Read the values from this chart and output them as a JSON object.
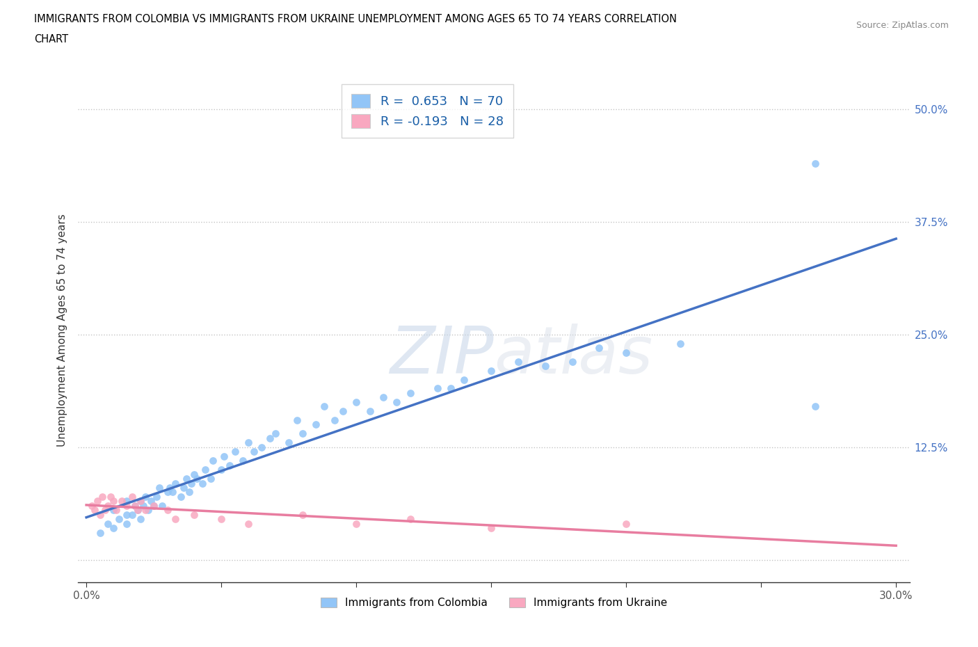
{
  "title_line1": "IMMIGRANTS FROM COLOMBIA VS IMMIGRANTS FROM UKRAINE UNEMPLOYMENT AMONG AGES 65 TO 74 YEARS CORRELATION",
  "title_line2": "CHART",
  "source": "Source: ZipAtlas.com",
  "ylabel": "Unemployment Among Ages 65 to 74 years",
  "colombia_R": 0.653,
  "colombia_N": 70,
  "ukraine_R": -0.193,
  "ukraine_N": 28,
  "colombia_color": "#92C5F7",
  "ukraine_color": "#F9A8C0",
  "colombia_line_color": "#4472C4",
  "ukraine_line_color": "#E87DA0",
  "legend_label_1": "Immigrants from Colombia",
  "legend_label_2": "Immigrants from Ukraine",
  "colombia_x": [
    0.005,
    0.008,
    0.01,
    0.01,
    0.012,
    0.015,
    0.015,
    0.015,
    0.017,
    0.018,
    0.019,
    0.02,
    0.02,
    0.021,
    0.022,
    0.023,
    0.024,
    0.025,
    0.026,
    0.027,
    0.028,
    0.03,
    0.031,
    0.032,
    0.033,
    0.035,
    0.036,
    0.037,
    0.038,
    0.039,
    0.04,
    0.041,
    0.043,
    0.044,
    0.046,
    0.047,
    0.05,
    0.051,
    0.053,
    0.055,
    0.058,
    0.06,
    0.062,
    0.065,
    0.068,
    0.07,
    0.075,
    0.078,
    0.08,
    0.085,
    0.088,
    0.092,
    0.095,
    0.1,
    0.105,
    0.11,
    0.115,
    0.12,
    0.13,
    0.135,
    0.14,
    0.15,
    0.16,
    0.17,
    0.18,
    0.19,
    0.2,
    0.22,
    0.27,
    0.27
  ],
  "colombia_y": [
    0.03,
    0.04,
    0.035,
    0.055,
    0.045,
    0.04,
    0.05,
    0.065,
    0.05,
    0.06,
    0.055,
    0.045,
    0.065,
    0.06,
    0.07,
    0.055,
    0.065,
    0.06,
    0.07,
    0.08,
    0.06,
    0.075,
    0.08,
    0.075,
    0.085,
    0.07,
    0.08,
    0.09,
    0.075,
    0.085,
    0.095,
    0.09,
    0.085,
    0.1,
    0.09,
    0.11,
    0.1,
    0.115,
    0.105,
    0.12,
    0.11,
    0.13,
    0.12,
    0.125,
    0.135,
    0.14,
    0.13,
    0.155,
    0.14,
    0.15,
    0.17,
    0.155,
    0.165,
    0.175,
    0.165,
    0.18,
    0.175,
    0.185,
    0.19,
    0.19,
    0.2,
    0.21,
    0.22,
    0.215,
    0.22,
    0.235,
    0.23,
    0.24,
    0.17,
    0.44
  ],
  "ukraine_x": [
    0.002,
    0.003,
    0.004,
    0.005,
    0.006,
    0.007,
    0.008,
    0.009,
    0.01,
    0.011,
    0.013,
    0.015,
    0.017,
    0.018,
    0.019,
    0.02,
    0.022,
    0.025,
    0.03,
    0.033,
    0.04,
    0.05,
    0.06,
    0.08,
    0.1,
    0.12,
    0.15,
    0.2
  ],
  "ukraine_y": [
    0.06,
    0.055,
    0.065,
    0.05,
    0.07,
    0.055,
    0.06,
    0.07,
    0.065,
    0.055,
    0.065,
    0.06,
    0.07,
    0.06,
    0.055,
    0.065,
    0.055,
    0.06,
    0.055,
    0.045,
    0.05,
    0.045,
    0.04,
    0.05,
    0.04,
    0.045,
    0.035,
    0.04
  ],
  "yticks": [
    0.0,
    0.125,
    0.25,
    0.375,
    0.5
  ],
  "yticklabels_right": [
    "",
    "12.5%",
    "25.0%",
    "37.5%",
    "50.0%"
  ],
  "xticks": [
    0.0,
    0.05,
    0.1,
    0.15,
    0.2,
    0.25,
    0.3
  ],
  "xticklabels": [
    "0.0%",
    "",
    "",
    "",
    "",
    "",
    "30.0%"
  ],
  "xlim": [
    -0.003,
    0.305
  ],
  "ylim": [
    -0.025,
    0.535
  ]
}
